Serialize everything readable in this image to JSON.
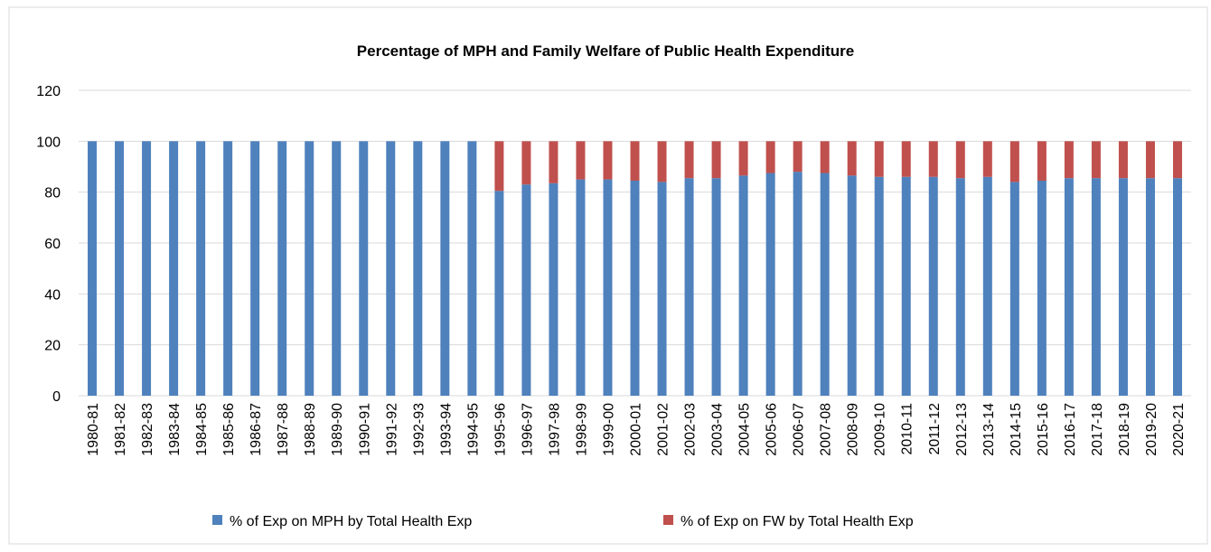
{
  "chart_data": {
    "type": "stacked_bar",
    "title": "Percentage of MPH and Family Welfare of Public Health Expenditure",
    "categories": [
      "1980-81",
      "1981-82",
      "1982-83",
      "1983-84",
      "1984-85",
      "1985-86",
      "1986-87",
      "1987-88",
      "1988-89",
      "1989-90",
      "1990-91",
      "1991-92",
      "1992-93",
      "1993-94",
      "1994-95",
      "1995-96",
      "1996-97",
      "1997-98",
      "1998-99",
      "1999-00",
      "2000-01",
      "2001-02",
      "2002-03",
      "2003-04",
      "2004-05",
      "2005-06",
      "2006-07",
      "2007-08",
      "2008-09",
      "2009-10",
      "2010-11",
      "2011-12",
      "2012-13",
      "2013-14",
      "2014-15",
      "2015-16",
      "2016-17",
      "2017-18",
      "2018-19",
      "2019-20",
      "2020-21"
    ],
    "series": [
      {
        "name": "% of Exp on MPH by Total Health Exp",
        "color": "#4f81bd",
        "values": [
          100,
          100,
          100,
          100,
          100,
          100,
          100,
          100,
          100,
          100,
          100,
          100,
          100,
          100,
          100,
          80.5,
          83,
          83.5,
          85,
          85,
          84.5,
          84,
          85.5,
          85.5,
          86.5,
          87.5,
          88,
          87.5,
          86.5,
          86,
          86,
          86,
          85.5,
          86,
          84,
          84.5,
          85.5,
          85.5,
          85.5,
          85.5,
          85.5
        ]
      },
      {
        "name": "% of Exp on FW by Total Health Exp",
        "color": "#c0504d",
        "values": [
          0,
          0,
          0,
          0,
          0,
          0,
          0,
          0,
          0,
          0,
          0,
          0,
          0,
          0,
          0,
          19.5,
          17,
          16.5,
          15,
          15,
          15.5,
          16,
          14.5,
          14.5,
          13.5,
          12.5,
          12,
          12.5,
          13.5,
          14,
          14,
          14,
          14.5,
          14,
          16,
          15.5,
          14.5,
          14.5,
          14.5,
          14.5,
          14.5
        ]
      }
    ],
    "ylim": [
      0,
      120
    ],
    "yticks": [
      0,
      20,
      40,
      60,
      80,
      100,
      120
    ],
    "grid": true,
    "legend": "bottom"
  }
}
